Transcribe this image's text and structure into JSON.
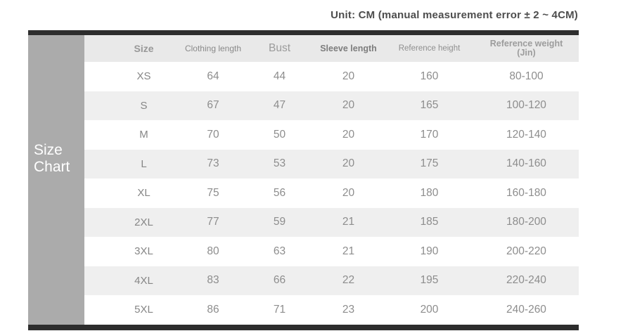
{
  "page": {
    "unit_note": "Unit: CM (manual measurement error ± 2 ~ 4CM)"
  },
  "sidebar": {
    "label": "Size\nChart"
  },
  "table": {
    "columns": [
      "Size",
      "Clothing length",
      "Bust",
      "Sleeve length",
      "Reference height",
      "Reference weight\n(Jin)"
    ],
    "rows": [
      [
        "XS",
        "64",
        "44",
        "20",
        "160",
        "80-100"
      ],
      [
        "S",
        "67",
        "47",
        "20",
        "165",
        "100-120"
      ],
      [
        "M",
        "70",
        "50",
        "20",
        "170",
        "120-140"
      ],
      [
        "L",
        "73",
        "53",
        "20",
        "175",
        "140-160"
      ],
      [
        "XL",
        "75",
        "56",
        "20",
        "180",
        "160-180"
      ],
      [
        "2XL",
        "77",
        "59",
        "21",
        "185",
        "180-200"
      ],
      [
        "3XL",
        "80",
        "63",
        "21",
        "190",
        "200-220"
      ],
      [
        "4XL",
        "83",
        "66",
        "22",
        "195",
        "220-240"
      ],
      [
        "5XL",
        "86",
        "71",
        "23",
        "200",
        "240-260"
      ]
    ]
  },
  "chart_data": {
    "type": "table",
    "title": "Size Chart",
    "unit_note": "Unit: CM (manual measurement error ± 2 ~ 4CM)",
    "columns": [
      "Size",
      "Clothing length",
      "Bust",
      "Sleeve length",
      "Reference height",
      "Reference weight (Jin)"
    ],
    "rows": [
      [
        "XS",
        64,
        44,
        20,
        160,
        "80-100"
      ],
      [
        "S",
        67,
        47,
        20,
        165,
        "100-120"
      ],
      [
        "M",
        70,
        50,
        20,
        170,
        "120-140"
      ],
      [
        "L",
        73,
        53,
        20,
        175,
        "140-160"
      ],
      [
        "XL",
        75,
        56,
        20,
        180,
        "160-180"
      ],
      [
        "2XL",
        77,
        59,
        21,
        185,
        "180-200"
      ],
      [
        "3XL",
        80,
        63,
        21,
        190,
        "200-220"
      ],
      [
        "4XL",
        83,
        66,
        22,
        195,
        "220-240"
      ],
      [
        "5XL",
        86,
        71,
        23,
        200,
        "240-260"
      ]
    ]
  },
  "colors": {
    "bar": "#2d2d2d",
    "sidebar_bg": "#ababab",
    "sidebar_text": "#ffffff",
    "header_bg": "#e9e9e9",
    "row_bg": "#ffffff",
    "row_alt_bg": "#efefef",
    "cell_text": "#8d8d8d",
    "title_text": "#4d4d4d"
  }
}
